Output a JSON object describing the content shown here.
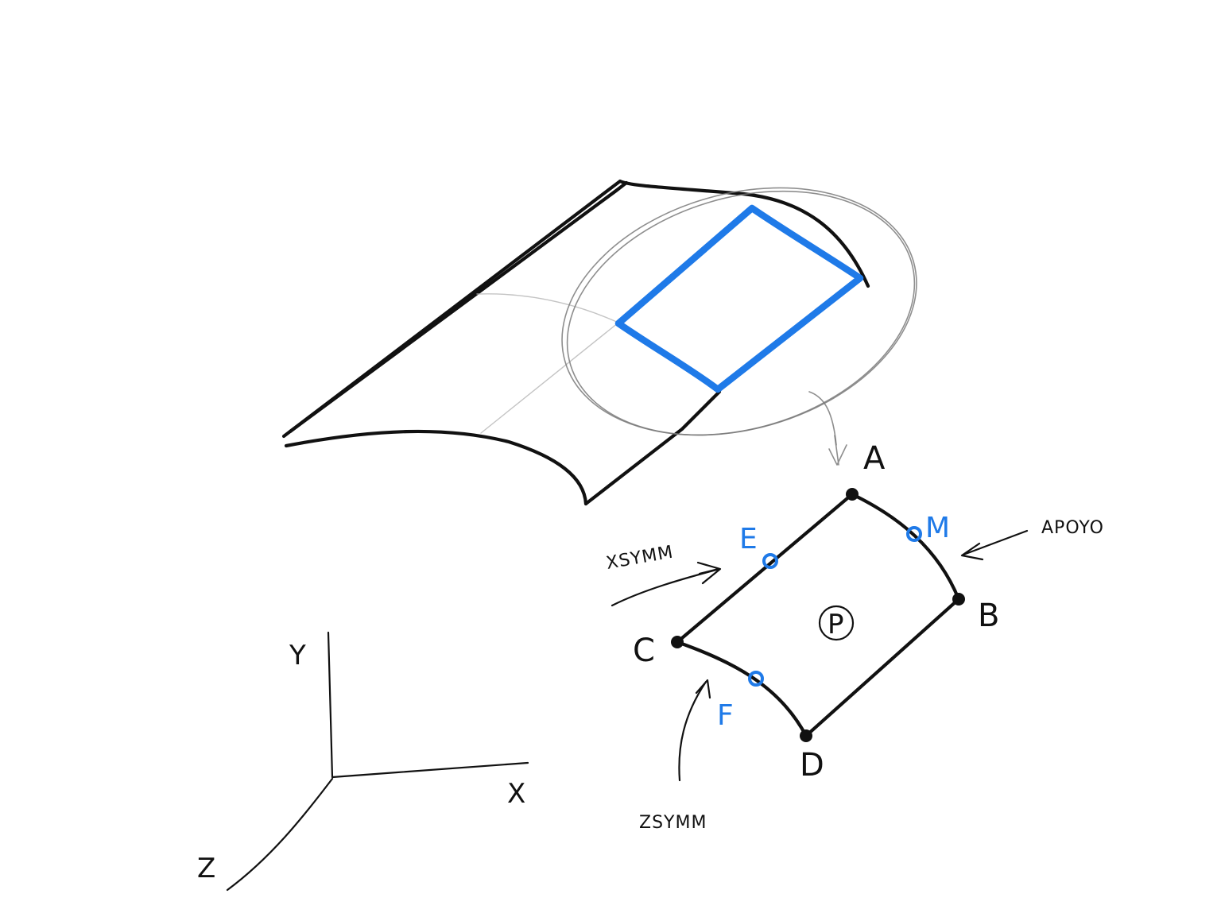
{
  "diagram": {
    "nodes": {
      "a": "A",
      "b": "B",
      "c": "C",
      "d": "D"
    },
    "points": {
      "e": "E",
      "m": "M",
      "f": "F"
    },
    "panel_label": "P",
    "annotations": {
      "xsymm": "XSYMM",
      "zsymm": "ZSYMM",
      "apoyo": "APOYO"
    },
    "axes": {
      "x": "X",
      "y": "Y",
      "z": "Z"
    },
    "colors": {
      "ink": "#111111",
      "highlight": "#1f7ae8",
      "pencil": "#7a7a7a"
    }
  }
}
